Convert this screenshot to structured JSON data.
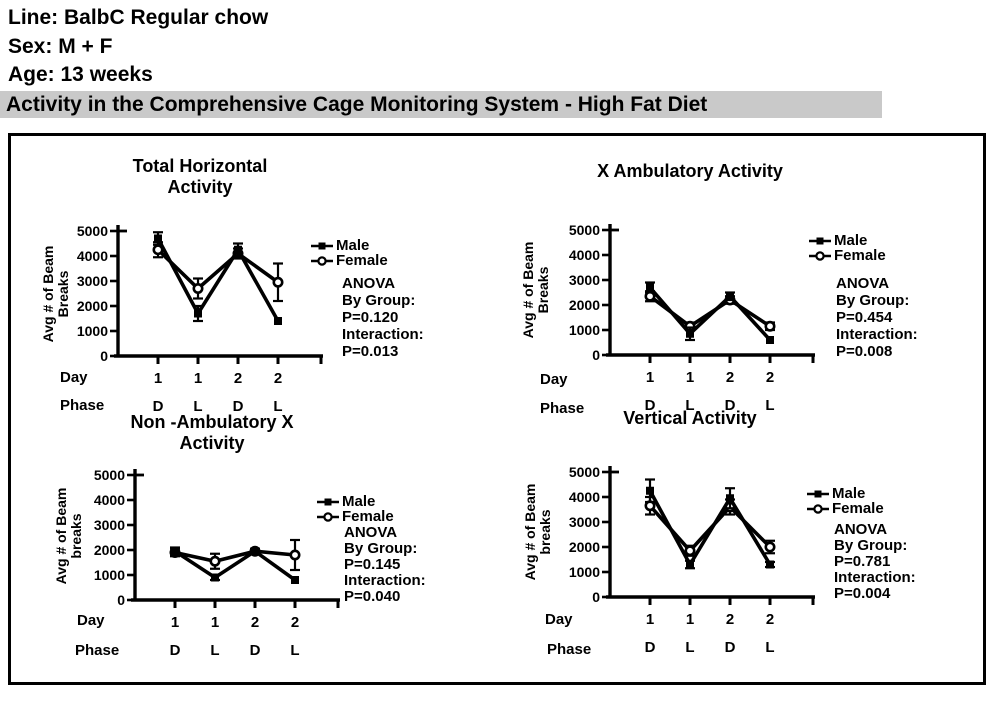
{
  "header": {
    "line": "Line: BalbC Regular chow",
    "sex": "Sex: M + F",
    "age": "Age: 13 weeks",
    "banner": "Activity in the Comprehensive Cage Monitoring System - High Fat Diet"
  },
  "colors": {
    "line": "#000000",
    "banner_bg": "#c9c9c9",
    "text": "#000000",
    "background": "#ffffff"
  },
  "chart_data": [
    {
      "type": "line",
      "title_lines": [
        "Total Horizontal",
        "Activity"
      ],
      "ylabel_lines": [
        "Avg # of Beam",
        "Breaks"
      ],
      "ylim": [
        0,
        5000
      ],
      "ytick_step": 1000,
      "day_label": "Day",
      "phase_label": "Phase",
      "day_values": [
        "1",
        "1",
        "2",
        "2"
      ],
      "phase_values": [
        "D",
        "L",
        "D",
        "L"
      ],
      "series": [
        {
          "name": "Male",
          "marker": "filled-square",
          "values": [
            4700,
            1700,
            4250,
            1400
          ],
          "errors": [
            250,
            300,
            250,
            0
          ]
        },
        {
          "name": "Female",
          "marker": "open-circle",
          "values": [
            4250,
            2700,
            4100,
            2950
          ],
          "errors": [
            300,
            400,
            200,
            750
          ]
        }
      ],
      "anova": {
        "heading": "ANOVA",
        "group_label": "By Group:",
        "group_p": "P=0.120",
        "interaction_label": "Interaction:",
        "interaction_p": "P=0.013"
      }
    },
    {
      "type": "line",
      "title_lines": [
        "X Ambulatory Activity"
      ],
      "ylabel_lines": [
        "Avg # of Beam",
        "Breaks"
      ],
      "ylim": [
        0,
        5000
      ],
      "ytick_step": 1000,
      "day_label": "Day",
      "phase_label": "Phase",
      "day_values": [
        "1",
        "1",
        "2",
        "2"
      ],
      "phase_values": [
        "D",
        "L",
        "D",
        "L"
      ],
      "series": [
        {
          "name": "Male",
          "marker": "filled-square",
          "values": [
            2700,
            850,
            2350,
            600
          ],
          "errors": [
            200,
            250,
            150,
            0
          ]
        },
        {
          "name": "Female",
          "marker": "open-circle",
          "values": [
            2350,
            1150,
            2200,
            1150
          ],
          "errors": [
            200,
            150,
            150,
            150
          ]
        }
      ],
      "anova": {
        "heading": "ANOVA",
        "group_label": "By Group:",
        "group_p": "P=0.454",
        "interaction_label": "Interaction:",
        "interaction_p": "P=0.008"
      }
    },
    {
      "type": "line",
      "title_lines": [
        "Non -Ambulatory X",
        "Activity"
      ],
      "ylabel_lines": [
        "Avg # of Beam",
        "breaks"
      ],
      "ylim": [
        0,
        5000
      ],
      "ytick_step": 1000,
      "day_label": "Day",
      "phase_label": "Phase",
      "day_values": [
        "1",
        "1",
        "2",
        "2"
      ],
      "phase_values": [
        "D",
        "L",
        "D",
        "L"
      ],
      "series": [
        {
          "name": "Male",
          "marker": "filled-square",
          "values": [
            1950,
            900,
            1950,
            800
          ],
          "errors": [
            150,
            100,
            100,
            0
          ]
        },
        {
          "name": "Female",
          "marker": "open-circle",
          "values": [
            1900,
            1550,
            1950,
            1800
          ],
          "errors": [
            150,
            300,
            100,
            600
          ]
        }
      ],
      "anova": {
        "heading": "ANOVA",
        "group_label": "By Group:",
        "group_p": "P=0.145",
        "interaction_label": "Interaction:",
        "interaction_p": "P=0.040"
      }
    },
    {
      "type": "line",
      "title_lines": [
        "Vertical Activity"
      ],
      "ylabel_lines": [
        "Avg # of Beam",
        "breaks"
      ],
      "ylim": [
        0,
        5000
      ],
      "ytick_step": 1000,
      "day_label": "Day",
      "phase_label": "Phase",
      "day_values": [
        "1",
        "1",
        "2",
        "2"
      ],
      "phase_values": [
        "D",
        "L",
        "D",
        "L"
      ],
      "series": [
        {
          "name": "Male",
          "marker": "filled-square",
          "values": [
            4250,
            1300,
            3950,
            1300
          ],
          "errors": [
            450,
            150,
            400,
            100
          ]
        },
        {
          "name": "Female",
          "marker": "open-circle",
          "values": [
            3650,
            1850,
            3600,
            2000
          ],
          "errors": [
            350,
            200,
            300,
            250
          ]
        }
      ],
      "anova": {
        "heading": "ANOVA",
        "group_label": "By Group:",
        "group_p": "P=0.781",
        "interaction_label": "Interaction:",
        "interaction_p": "P=0.004"
      }
    }
  ]
}
